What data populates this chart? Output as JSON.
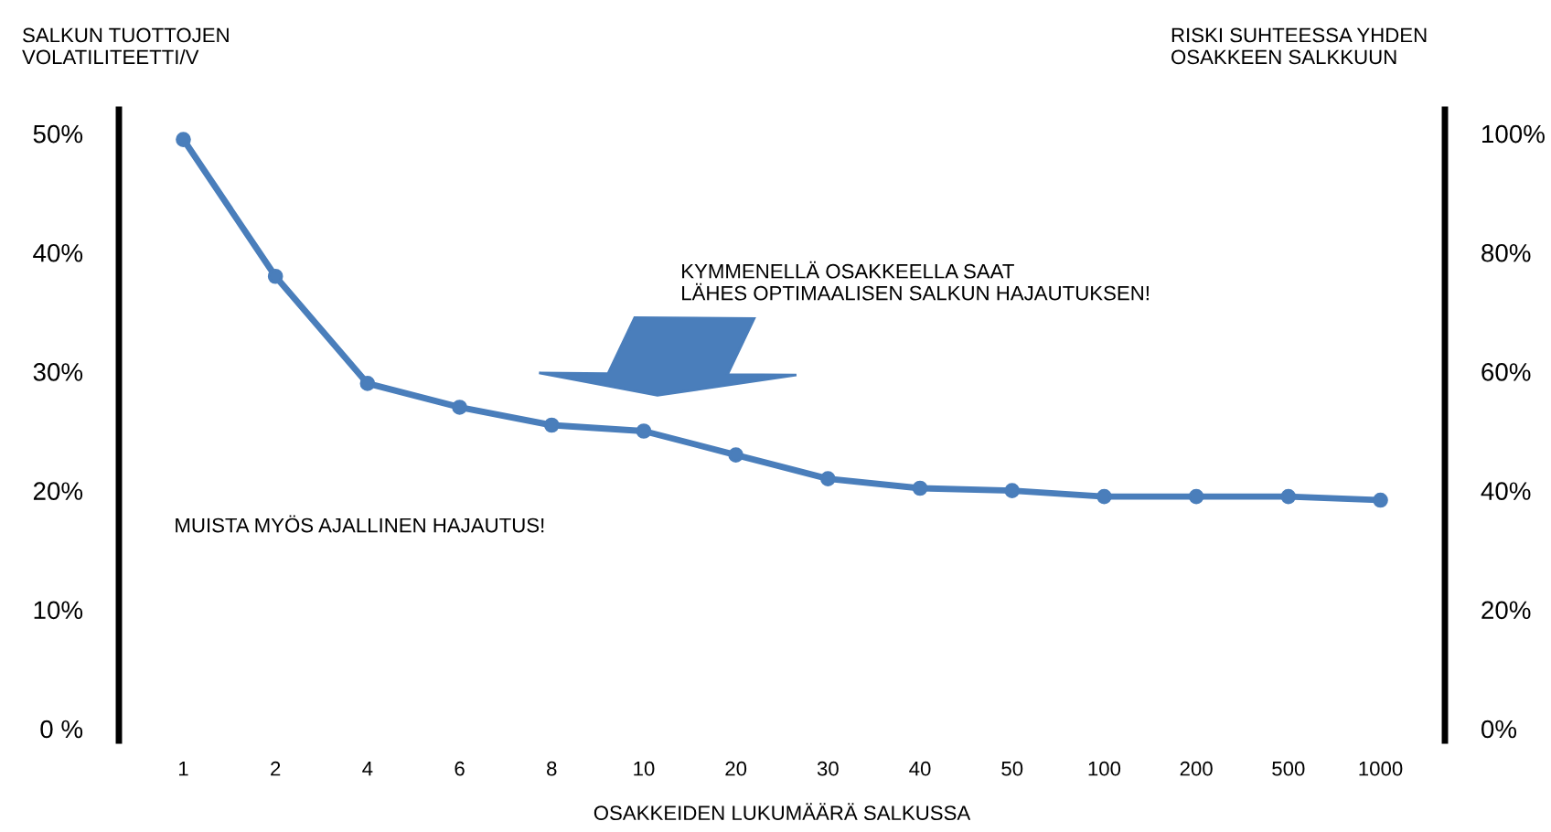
{
  "chart_data": {
    "type": "line",
    "ylabel": "SALKUN TUOTTOJEN\nVOLATILITEETTI/V",
    "y2label": "RISKI SUHTEESSA YHDEN\nOSAKKEEN SALKKUUN",
    "xlabel": "OSAKKEIDEN LUKUMÄÄRÄ SALKUSSA",
    "categories": [
      "1",
      "2",
      "4",
      "6",
      "8",
      "10",
      "20",
      "30",
      "40",
      "50",
      "100",
      "200",
      "500",
      "1000"
    ],
    "series": [
      {
        "color": "#4a7ebb",
        "values": [
          49.5,
          38,
          29,
          27,
          25.5,
          25,
          23,
          21,
          20.2,
          20,
          19.5,
          19.5,
          19.5,
          19.2
        ]
      }
    ],
    "ylim": [
      -1,
      52
    ],
    "yticks": [
      {
        "value": 0,
        "label": "0 %"
      },
      {
        "value": 10,
        "label": "10%"
      },
      {
        "value": 20,
        "label": "20%"
      },
      {
        "value": 30,
        "label": "30%"
      },
      {
        "value": 40,
        "label": "40%"
      },
      {
        "value": 50,
        "label": "50%"
      }
    ],
    "y2lim": [
      -2,
      104
    ],
    "y2ticks": [
      {
        "value": 0,
        "label": "0%"
      },
      {
        "value": 20,
        "label": "20%"
      },
      {
        "value": 40,
        "label": "40%"
      },
      {
        "value": 60,
        "label": "60%"
      },
      {
        "value": 80,
        "label": "80%"
      },
      {
        "value": 100,
        "label": "100%"
      }
    ],
    "marker": "circle",
    "line_style": "solid",
    "grid": false,
    "legend": false,
    "annotations": [
      "KYMMENELLÄ OSAKKEELLA SAAT\nLÄHES OPTIMAALISEN SALKUN HAJAUTUKSEN!",
      "MUISTA MYÖS AJALLINEN HAJAUTUS!"
    ]
  }
}
